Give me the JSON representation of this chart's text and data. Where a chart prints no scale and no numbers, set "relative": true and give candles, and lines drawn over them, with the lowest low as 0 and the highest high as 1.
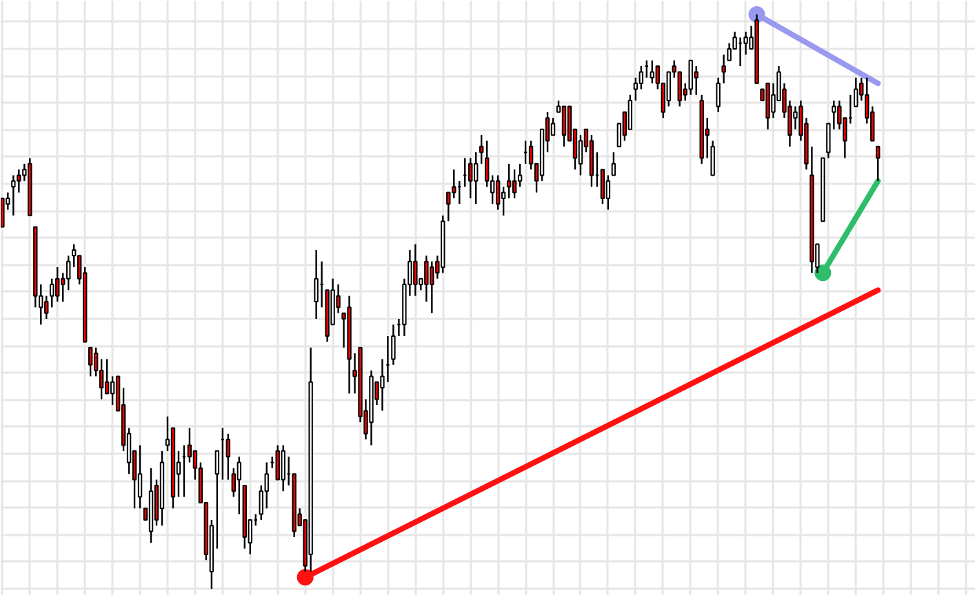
{
  "chart_data": {
    "type": "candlestick",
    "relative": true,
    "grid": true,
    "categories": [
      null,
      null,
      null,
      null,
      null,
      null,
      null,
      null,
      null,
      null,
      null,
      null,
      null,
      null,
      null,
      null,
      null,
      null,
      null,
      null,
      null,
      null,
      null,
      null,
      null,
      null,
      null,
      null,
      null,
      null,
      null,
      null,
      null,
      null,
      null,
      null,
      null,
      null,
      null,
      null,
      null,
      null,
      null,
      null,
      null,
      null,
      null,
      null,
      null,
      null,
      null,
      null,
      null,
      null,
      null,
      null,
      null,
      null,
      null,
      null,
      null,
      null,
      null,
      null,
      null,
      null,
      null,
      null,
      null,
      null,
      null,
      null,
      null,
      null,
      null,
      null,
      null,
      null,
      null,
      null,
      null,
      null,
      null,
      null,
      null,
      null,
      null,
      null,
      null,
      null,
      null,
      null,
      null,
      null,
      null,
      null,
      null,
      null,
      null,
      null,
      null,
      null,
      null,
      null,
      null,
      null,
      null,
      null,
      null,
      null,
      null,
      null,
      null,
      null,
      null,
      null,
      null,
      null,
      null,
      null,
      null,
      null,
      null,
      null,
      null,
      null,
      null,
      null,
      null,
      null,
      null,
      null,
      null,
      null,
      null,
      null,
      null,
      null,
      null,
      null,
      null,
      null,
      null,
      null,
      null,
      null,
      null,
      null,
      null,
      null,
      null,
      null,
      null,
      null,
      null,
      null,
      null,
      null,
      null,
      null
    ],
    "ohlc": [
      [
        0.68,
        0.68,
        0.63,
        0.63
      ],
      [
        0.67,
        0.69,
        0.66,
        0.68
      ],
      [
        0.7,
        0.72,
        0.65,
        0.71
      ],
      [
        0.72,
        0.73,
        0.69,
        0.71
      ],
      [
        0.72,
        0.74,
        0.71,
        0.73
      ],
      [
        0.74,
        0.75,
        0.65,
        0.65
      ],
      [
        0.63,
        0.63,
        0.49,
        0.51
      ],
      [
        0.49,
        0.53,
        0.46,
        0.51
      ],
      [
        0.5,
        0.51,
        0.47,
        0.48
      ],
      [
        0.51,
        0.54,
        0.49,
        0.53
      ],
      [
        0.54,
        0.56,
        0.5,
        0.51
      ],
      [
        0.54,
        0.55,
        0.5,
        0.53
      ],
      [
        0.54,
        0.58,
        0.52,
        0.57
      ],
      [
        0.58,
        0.6,
        0.56,
        0.59
      ],
      [
        0.58,
        0.58,
        0.53,
        0.54
      ],
      [
        0.55,
        0.56,
        0.43,
        0.43
      ],
      [
        0.42,
        0.42,
        0.37,
        0.39
      ],
      [
        0.41,
        0.42,
        0.37,
        0.38
      ],
      [
        0.38,
        0.4,
        0.33,
        0.35
      ],
      [
        0.36,
        0.4,
        0.34,
        0.34
      ],
      [
        0.34,
        0.37,
        0.32,
        0.36
      ],
      [
        0.37,
        0.37,
        0.31,
        0.31
      ],
      [
        0.32,
        0.35,
        0.24,
        0.25
      ],
      [
        0.22,
        0.28,
        0.2,
        0.27
      ],
      [
        0.24,
        0.24,
        0.14,
        0.19
      ],
      [
        0.16,
        0.25,
        0.14,
        0.2
      ],
      [
        0.14,
        0.14,
        0.12,
        0.12
      ],
      [
        0.1,
        0.21,
        0.08,
        0.17
      ],
      [
        0.18,
        0.19,
        0.11,
        0.12
      ],
      [
        0.14,
        0.24,
        0.11,
        0.22
      ],
      [
        0.25,
        0.3,
        0.24,
        0.26
      ],
      [
        0.28,
        0.28,
        0.14,
        0.16
      ],
      [
        0.2,
        0.24,
        0.16,
        0.22
      ],
      [
        0.23,
        0.25,
        0.16,
        0.23
      ],
      [
        0.25,
        0.28,
        0.22,
        0.23
      ],
      [
        0.24,
        0.24,
        0.19,
        0.21
      ],
      [
        0.21,
        0.22,
        0.15,
        0.15
      ],
      [
        0.15,
        0.15,
        0.05,
        0.06
      ],
      [
        0.03,
        0.12,
        0,
        0.11
      ],
      [
        0.2,
        0.24,
        0.07,
        0.24
      ],
      [
        0.26,
        0.28,
        0.19,
        0.26
      ],
      [
        0.26,
        0.27,
        0.19,
        0.23
      ],
      [
        0.2,
        0.21,
        0.16,
        0.17
      ],
      [
        0.19,
        0.23,
        0.13,
        0.22
      ],
      [
        0.18,
        0.18,
        0.07,
        0.09
      ],
      [
        0.08,
        0.12,
        0.06,
        0.12
      ],
      [
        0.12,
        0.13,
        0.11,
        0.12
      ],
      [
        0.13,
        0.18,
        0.12,
        0.17
      ],
      [
        0.17,
        0.22,
        0.14,
        0.2
      ],
      [
        0.22,
        0.23,
        0.21,
        0.22
      ],
      [
        0.24,
        0.25,
        0.19,
        0.19
      ],
      [
        0.19,
        0.25,
        0.17,
        0.24
      ],
      [
        0.2,
        0.23,
        0.18,
        0.2
      ],
      [
        0.2,
        0.2,
        0.09,
        0.1
      ],
      [
        0.13,
        0.14,
        0.11,
        0.11
      ],
      [
        0.12,
        0.12,
        0.03,
        0.04
      ],
      [
        0.06,
        0.42,
        0.03,
        0.36
      ],
      [
        0.5,
        0.59,
        0.47,
        0.54
      ],
      [
        0.53,
        0.57,
        0.49,
        0.53
      ],
      [
        0.52,
        0.52,
        0.43,
        0.44
      ],
      [
        0.46,
        0.54,
        0.46,
        0.52
      ],
      [
        0.51,
        0.53,
        0.48,
        0.49
      ],
      [
        0.48,
        0.48,
        0.42,
        0.47
      ],
      [
        0.49,
        0.51,
        0.34,
        0.4
      ],
      [
        0.38,
        0.41,
        0.34,
        0.37
      ],
      [
        0.42,
        0.42,
        0.29,
        0.3
      ],
      [
        0.31,
        0.33,
        0.26,
        0.27
      ],
      [
        0.29,
        0.38,
        0.25,
        0.37
      ],
      [
        0.36,
        0.36,
        0.32,
        0.33
      ],
      [
        0.35,
        0.4,
        0.31,
        0.37
      ],
      [
        0.39,
        0.44,
        0.36,
        0.39
      ],
      [
        0.4,
        0.46,
        0.39,
        0.44
      ],
      [
        0.46,
        0.47,
        0.44,
        0.46
      ],
      [
        0.46,
        0.54,
        0.44,
        0.53
      ],
      [
        0.53,
        0.59,
        0.51,
        0.57
      ],
      [
        0.57,
        0.6,
        0.51,
        0.53
      ],
      [
        0.53,
        0.54,
        0.52,
        0.54
      ],
      [
        0.57,
        0.58,
        0.5,
        0.53
      ],
      [
        0.56,
        0.57,
        0.48,
        0.53
      ],
      [
        0.57,
        0.58,
        0.54,
        0.55
      ],
      [
        0.56,
        0.65,
        0.55,
        0.64
      ],
      [
        0.69,
        0.69,
        0.64,
        0.67
      ],
      [
        0.7,
        0.73,
        0.68,
        0.69
      ],
      [
        0.7,
        0.71,
        0.67,
        0.7
      ],
      [
        0.72,
        0.75,
        0.7,
        0.72
      ],
      [
        0.74,
        0.75,
        0.68,
        0.71
      ],
      [
        0.71,
        0.76,
        0.67,
        0.74
      ],
      [
        0.77,
        0.79,
        0.74,
        0.76
      ],
      [
        0.75,
        0.78,
        0.7,
        0.71
      ],
      [
        0.69,
        0.72,
        0.67,
        0.71
      ],
      [
        0.71,
        0.72,
        0.66,
        0.67
      ],
      [
        0.68,
        0.7,
        0.65,
        0.69
      ],
      [
        0.71,
        0.74,
        0.68,
        0.7
      ],
      [
        0.71,
        0.73,
        0.68,
        0.69
      ],
      [
        0.71,
        0.74,
        0.7,
        0.72
      ],
      [
        0.76,
        0.78,
        0.74,
        0.76
      ],
      [
        0.77,
        0.78,
        0.73,
        0.74
      ],
      [
        0.74,
        0.74,
        0.69,
        0.71
      ],
      [
        0.72,
        0.8,
        0.71,
        0.8
      ],
      [
        0.82,
        0.83,
        0.76,
        0.78
      ],
      [
        0.79,
        0.82,
        0.79,
        0.81
      ],
      [
        0.83,
        0.85,
        0.83,
        0.84
      ],
      [
        0.84,
        0.84,
        0.77,
        0.79
      ],
      [
        0.84,
        0.84,
        0.78,
        0.78
      ],
      [
        0.8,
        0.8,
        0.73,
        0.75
      ],
      [
        0.74,
        0.79,
        0.72,
        0.78
      ],
      [
        0.8,
        0.8,
        0.76,
        0.77
      ],
      [
        0.78,
        0.79,
        0.7,
        0.72
      ],
      [
        0.72,
        0.76,
        0.7,
        0.72
      ],
      [
        0.73,
        0.73,
        0.67,
        0.68
      ],
      [
        0.68,
        0.72,
        0.66,
        0.71
      ],
      [
        0.72,
        0.76,
        0.72,
        0.74
      ],
      [
        0.77,
        0.81,
        0.77,
        0.81
      ],
      [
        0.83,
        0.83,
        0.78,
        0.79
      ],
      [
        0.8,
        0.86,
        0.8,
        0.85
      ],
      [
        0.87,
        0.89,
        0.85,
        0.88
      ],
      [
        0.88,
        0.91,
        0.87,
        0.9
      ],
      [
        0.91,
        0.92,
        0.89,
        0.91
      ],
      [
        0.89,
        0.92,
        0.88,
        0.9
      ],
      [
        0.91,
        0.91,
        0.87,
        0.88
      ],
      [
        0.88,
        0.88,
        0.82,
        0.83
      ],
      [
        0.85,
        0.9,
        0.84,
        0.9
      ],
      [
        0.91,
        0.92,
        0.89,
        0.9
      ],
      [
        0.9,
        0.9,
        0.84,
        0.85
      ],
      [
        0.87,
        0.88,
        0.85,
        0.86
      ],
      [
        0.87,
        0.92,
        0.86,
        0.92
      ],
      [
        0.9,
        0.91,
        0.86,
        0.89
      ],
      [
        0.85,
        0.86,
        0.74,
        0.75
      ],
      [
        0.8,
        0.82,
        0.75,
        0.79
      ],
      [
        0.72,
        0.78,
        0.72,
        0.77
      ],
      [
        0.84,
        0.89,
        0.83,
        0.88
      ],
      [
        0.91,
        0.93,
        0.88,
        0.9
      ],
      [
        0.92,
        0.95,
        0.92,
        0.94
      ],
      [
        0.94,
        0.97,
        0.94,
        0.96
      ],
      [
        0.95,
        0.96,
        0.91,
        0.95
      ],
      [
        0.95,
        0.97,
        0.93,
        0.96
      ],
      [
        0.94,
        0.98,
        0.94,
        0.96
      ],
      [
        0.99,
        1,
        0.88,
        0.88
      ],
      [
        0.87,
        0.87,
        0.85,
        0.85
      ],
      [
        0.88,
        0.88,
        0.8,
        0.82
      ],
      [
        0.83,
        0.88,
        0.82,
        0.86
      ],
      [
        0.85,
        0.91,
        0.85,
        0.9
      ],
      [
        0.87,
        0.88,
        0.82,
        0.83
      ],
      [
        0.84,
        0.85,
        0.77,
        0.79
      ],
      [
        0.82,
        0.84,
        0.8,
        0.83
      ],
      [
        0.84,
        0.85,
        0.78,
        0.79
      ],
      [
        0.81,
        0.82,
        0.73,
        0.74
      ],
      [
        0.72,
        0.77,
        0.55,
        0.57
      ],
      [
        0.56,
        0.6,
        0.55,
        0.6
      ],
      [
        0.64,
        0.75,
        0.64,
        0.75
      ],
      [
        0.76,
        0.81,
        0.75,
        0.81
      ],
      [
        0.83,
        0.85,
        0.8,
        0.84
      ],
      [
        0.84,
        0.85,
        0.8,
        0.81
      ],
      [
        0.82,
        0.82,
        0.75,
        0.78
      ],
      [
        0.82,
        0.86,
        0.81,
        0.82
      ],
      [
        0.84,
        0.89,
        0.84,
        0.87
      ],
      [
        0.88,
        0.89,
        0.85,
        0.86
      ],
      [
        0.86,
        0.89,
        0.81,
        0.82
      ],
      [
        0.83,
        0.84,
        0.78,
        0.78
      ],
      [
        0.77,
        0.77,
        0.71,
        0.75
      ]
    ],
    "series": [
      {
        "type": "line",
        "color": "#ff1111",
        "values": [
          null,
          null,
          null,
          null,
          null,
          null,
          null,
          null,
          null,
          null,
          null,
          null,
          null,
          null,
          null,
          null,
          null,
          null,
          null,
          null,
          null,
          null,
          null,
          null,
          null,
          null,
          null,
          null,
          null,
          null,
          null,
          null,
          null,
          null,
          null,
          null,
          null,
          null,
          null,
          null,
          null,
          null,
          null,
          null,
          null,
          null,
          null,
          null,
          null,
          null,
          null,
          null,
          null,
          null,
          null,
          0.02,
          null,
          null,
          null,
          null,
          null,
          null,
          null,
          null,
          null,
          null,
          null,
          null,
          null,
          null,
          null,
          null,
          null,
          null,
          null,
          null,
          null,
          null,
          null,
          null,
          null,
          null,
          null,
          null,
          null,
          null,
          null,
          null,
          null,
          null,
          null,
          null,
          null,
          null,
          null,
          null,
          null,
          null,
          null,
          null,
          null,
          null,
          null,
          null,
          null,
          null,
          null,
          null,
          null,
          null,
          null,
          null,
          null,
          null,
          null,
          null,
          null,
          null,
          null,
          null,
          null,
          null,
          null,
          null,
          null,
          null,
          null,
          null,
          null,
          null,
          null,
          null,
          null,
          null,
          null,
          null,
          null,
          null,
          null,
          null,
          null,
          null,
          null,
          null,
          null,
          null,
          null,
          null,
          null,
          null,
          null,
          null,
          null,
          null,
          null,
          null,
          null,
          null,
          null,
          0.52
        ]
      },
      {
        "type": "line",
        "color": "#9999f0",
        "values": [
          null,
          null,
          null,
          null,
          null,
          null,
          null,
          null,
          null,
          null,
          null,
          null,
          null,
          null,
          null,
          null,
          null,
          null,
          null,
          null,
          null,
          null,
          null,
          null,
          null,
          null,
          null,
          null,
          null,
          null,
          null,
          null,
          null,
          null,
          null,
          null,
          null,
          null,
          null,
          null,
          null,
          null,
          null,
          null,
          null,
          null,
          null,
          null,
          null,
          null,
          null,
          null,
          null,
          null,
          null,
          null,
          null,
          null,
          null,
          null,
          null,
          null,
          null,
          null,
          null,
          null,
          null,
          null,
          null,
          null,
          null,
          null,
          null,
          null,
          null,
          null,
          null,
          null,
          null,
          null,
          null,
          null,
          null,
          null,
          null,
          null,
          null,
          null,
          null,
          null,
          null,
          null,
          null,
          null,
          null,
          null,
          null,
          null,
          null,
          null,
          null,
          null,
          null,
          null,
          null,
          null,
          null,
          null,
          null,
          null,
          null,
          null,
          null,
          null,
          null,
          null,
          null,
          null,
          null,
          null,
          null,
          null,
          null,
          null,
          null,
          null,
          null,
          null,
          null,
          null,
          null,
          null,
          null,
          null,
          null,
          null,
          null,
          1,
          null,
          null,
          null,
          null,
          null,
          null,
          null,
          null,
          null,
          null,
          null,
          null,
          null,
          null,
          null,
          null,
          null,
          null,
          null,
          null,
          null,
          0.88
        ]
      },
      {
        "type": "line",
        "color": "#2ebd6b",
        "values": [
          null,
          null,
          null,
          null,
          null,
          null,
          null,
          null,
          null,
          null,
          null,
          null,
          null,
          null,
          null,
          null,
          null,
          null,
          null,
          null,
          null,
          null,
          null,
          null,
          null,
          null,
          null,
          null,
          null,
          null,
          null,
          null,
          null,
          null,
          null,
          null,
          null,
          null,
          null,
          null,
          null,
          null,
          null,
          null,
          null,
          null,
          null,
          null,
          null,
          null,
          null,
          null,
          null,
          null,
          null,
          null,
          null,
          null,
          null,
          null,
          null,
          null,
          null,
          null,
          null,
          null,
          null,
          null,
          null,
          null,
          null,
          null,
          null,
          null,
          null,
          null,
          null,
          null,
          null,
          null,
          null,
          null,
          null,
          null,
          null,
          null,
          null,
          null,
          null,
          null,
          null,
          null,
          null,
          null,
          null,
          null,
          null,
          null,
          null,
          null,
          null,
          null,
          null,
          null,
          null,
          null,
          null,
          null,
          null,
          null,
          null,
          null,
          null,
          null,
          null,
          null,
          null,
          null,
          null,
          null,
          null,
          null,
          null,
          null,
          null,
          null,
          null,
          null,
          null,
          null,
          null,
          null,
          null,
          null,
          null,
          null,
          null,
          null,
          null,
          null,
          null,
          null,
          null,
          null,
          null,
          null,
          null,
          null,
          null,
          0.55,
          null,
          null,
          null,
          null,
          null,
          null,
          null,
          null,
          null,
          0.71
        ]
      }
    ]
  }
}
